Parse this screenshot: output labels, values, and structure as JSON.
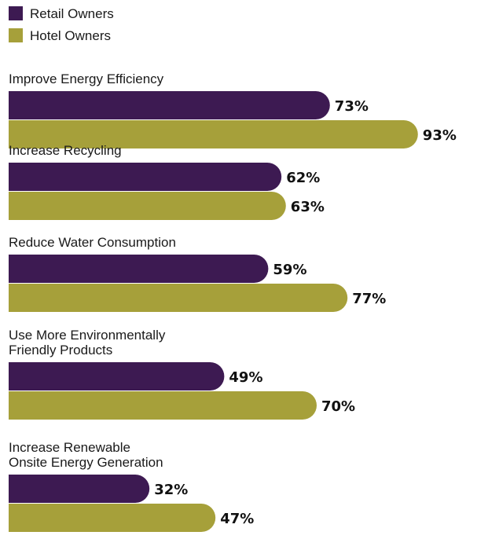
{
  "chart_data": {
    "type": "bar",
    "orientation": "horizontal",
    "categories": [
      [
        "Improve Energy Efficiency"
      ],
      [
        "Increase Recycling"
      ],
      [
        "Reduce Water Consumption"
      ],
      [
        "Use More Environmentally",
        "Friendly Products"
      ],
      [
        "Increase Renewable",
        "Onsite Energy Generation"
      ]
    ],
    "series": [
      {
        "name": "Retail Owners",
        "color": "#3d1a52",
        "values": [
          73,
          62,
          59,
          49,
          32
        ]
      },
      {
        "name": "Hotel Owners",
        "color": "#a6a03a",
        "values": [
          93,
          63,
          77,
          70,
          47
        ]
      }
    ],
    "value_suffix": "%",
    "xlim": [
      0,
      100
    ],
    "legend": "top-left",
    "grid": false
  }
}
